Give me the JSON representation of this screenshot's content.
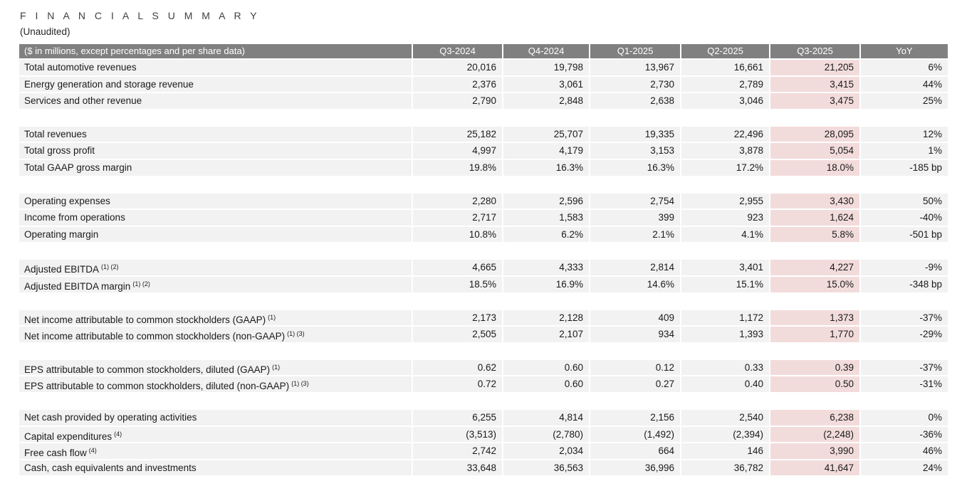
{
  "title": "F I N A N C I A L   S U M M A R Y",
  "subtitle": "(Unaudited)",
  "colors": {
    "header_bg": "#808080",
    "header_text": "#ffffff",
    "row_bg": "#f2f2f2",
    "highlight_bg": "#f2dcdb",
    "title_text": "#3f3f3f",
    "body_text": "#1a1a1a"
  },
  "table": {
    "caption": "($ in millions, except percentages and per share data)",
    "columns": [
      "Q3-2024",
      "Q4-2024",
      "Q1-2025",
      "Q2-2025",
      "Q3-2025",
      "YoY"
    ],
    "highlight_column": "Q3-2025",
    "sections": [
      {
        "rows": [
          {
            "label": "Total automotive revenues",
            "sup": "",
            "values": [
              "20,016",
              "19,798",
              "13,967",
              "16,661",
              "21,205",
              "6%"
            ]
          },
          {
            "label": "Energy generation and storage revenue",
            "sup": "",
            "values": [
              "2,376",
              "3,061",
              "2,730",
              "2,789",
              "3,415",
              "44%"
            ]
          },
          {
            "label": "Services and other revenue",
            "sup": "",
            "values": [
              "2,790",
              "2,848",
              "2,638",
              "3,046",
              "3,475",
              "25%"
            ]
          }
        ]
      },
      {
        "rows": [
          {
            "label": "Total revenues",
            "sup": "",
            "values": [
              "25,182",
              "25,707",
              "19,335",
              "22,496",
              "28,095",
              "12%"
            ]
          },
          {
            "label": "Total gross profit",
            "sup": "",
            "values": [
              "4,997",
              "4,179",
              "3,153",
              "3,878",
              "5,054",
              "1%"
            ]
          },
          {
            "label": "Total GAAP gross margin",
            "sup": "",
            "values": [
              "19.8%",
              "16.3%",
              "16.3%",
              "17.2%",
              "18.0%",
              "-185 bp"
            ]
          }
        ]
      },
      {
        "rows": [
          {
            "label": "Operating expenses",
            "sup": "",
            "values": [
              "2,280",
              "2,596",
              "2,754",
              "2,955",
              "3,430",
              "50%"
            ]
          },
          {
            "label": "Income from operations",
            "sup": "",
            "values": [
              "2,717",
              "1,583",
              "399",
              "923",
              "1,624",
              "-40%"
            ]
          },
          {
            "label": "Operating margin",
            "sup": "",
            "values": [
              "10.8%",
              "6.2%",
              "2.1%",
              "4.1%",
              "5.8%",
              "-501 bp"
            ]
          }
        ]
      },
      {
        "rows": [
          {
            "label": "Adjusted EBITDA",
            "sup": "(1) (2)",
            "values": [
              "4,665",
              "4,333",
              "2,814",
              "3,401",
              "4,227",
              "-9%"
            ]
          },
          {
            "label": "Adjusted EBITDA margin",
            "sup": "(1) (2)",
            "values": [
              "18.5%",
              "16.9%",
              "14.6%",
              "15.1%",
              "15.0%",
              "-348 bp"
            ]
          }
        ]
      },
      {
        "rows": [
          {
            "label": "Net income attributable to common stockholders (GAAP)",
            "sup": "(1)",
            "values": [
              "2,173",
              "2,128",
              "409",
              "1,172",
              "1,373",
              "-37%"
            ]
          },
          {
            "label": "Net income attributable to common stockholders (non-GAAP)",
            "sup": "(1) (3)",
            "values": [
              "2,505",
              "2,107",
              "934",
              "1,393",
              "1,770",
              "-29%"
            ]
          }
        ]
      },
      {
        "rows": [
          {
            "label": "EPS attributable to common stockholders, diluted (GAAP)",
            "sup": "(1)",
            "values": [
              "0.62",
              "0.60",
              "0.12",
              "0.33",
              "0.39",
              "-37%"
            ]
          },
          {
            "label": "EPS attributable to common stockholders, diluted (non-GAAP)",
            "sup": "(1) (3)",
            "values": [
              "0.72",
              "0.60",
              "0.27",
              "0.40",
              "0.50",
              "-31%"
            ]
          }
        ]
      },
      {
        "rows": [
          {
            "label": "Net cash provided by operating activities",
            "sup": "",
            "values": [
              "6,255",
              "4,814",
              "2,156",
              "2,540",
              "6,238",
              "0%"
            ]
          },
          {
            "label": "Capital expenditures",
            "sup": "(4)",
            "values": [
              "(3,513)",
              "(2,780)",
              "(1,492)",
              "(2,394)",
              "(2,248)",
              "-36%"
            ]
          },
          {
            "label": "Free cash flow",
            "sup": "(4)",
            "values": [
              "2,742",
              "2,034",
              "664",
              "146",
              "3,990",
              "46%"
            ]
          },
          {
            "label": "Cash, cash equivalents and investments",
            "sup": "",
            "values": [
              "33,648",
              "36,563",
              "36,996",
              "36,782",
              "41,647",
              "24%"
            ]
          }
        ]
      }
    ]
  }
}
